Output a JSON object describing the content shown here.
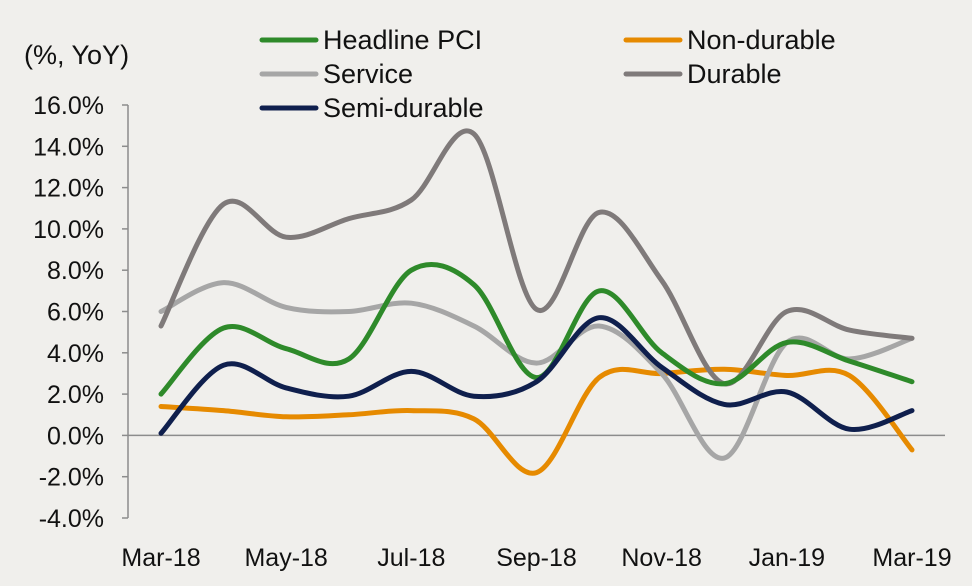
{
  "chart_data": {
    "type": "line",
    "title": "",
    "xlabel": "",
    "ylabel": "(%, YoY)",
    "categories": [
      "Mar-18",
      "Apr-18",
      "May-18",
      "Jun-18",
      "Jul-18",
      "Aug-18",
      "Sep-18",
      "Oct-18",
      "Nov-18",
      "Dec-18",
      "Jan-19",
      "Feb-19",
      "Mar-19"
    ],
    "x_tick_labels": [
      "Mar-18",
      "May-18",
      "Jul-18",
      "Sep-18",
      "Nov-18",
      "Jan-19",
      "Mar-19"
    ],
    "y_tick_labels": [
      "16.0%",
      "14.0%",
      "12.0%",
      "10.0%",
      "8.0%",
      "6.0%",
      "4.0%",
      "2.0%",
      "0.0%",
      "-2.0%",
      "-4.0%"
    ],
    "ylim": [
      -4,
      16
    ],
    "y_step": 2,
    "grid": false,
    "legend_position": "top",
    "series": [
      {
        "name": "Headline PCI",
        "color": "#2e8a2a",
        "values": [
          2.0,
          5.2,
          4.2,
          3.7,
          8.0,
          7.3,
          2.8,
          7.0,
          4.0,
          2.5,
          4.5,
          3.6,
          2.6
        ]
      },
      {
        "name": "Service",
        "color": "#a6a6a6",
        "values": [
          6.0,
          7.4,
          6.2,
          6.0,
          6.4,
          5.3,
          3.5,
          5.3,
          3.0,
          -1.1,
          4.5,
          3.7,
          4.7
        ]
      },
      {
        "name": "Semi-durable",
        "color": "#0f1f4d",
        "values": [
          0.1,
          3.4,
          2.3,
          1.9,
          3.1,
          1.9,
          2.6,
          5.7,
          3.3,
          1.5,
          2.1,
          0.3,
          1.2
        ]
      },
      {
        "name": "Non-durable",
        "color": "#e68a00",
        "values": [
          1.4,
          1.2,
          0.9,
          1.0,
          1.2,
          0.8,
          -1.8,
          2.8,
          3.0,
          3.2,
          2.9,
          2.9,
          -0.7
        ]
      },
      {
        "name": "Durable",
        "color": "#7f7a7a",
        "values": [
          5.3,
          11.2,
          9.6,
          10.5,
          11.4,
          14.6,
          6.1,
          10.8,
          7.5,
          2.5,
          6.0,
          5.1,
          4.7
        ]
      }
    ]
  }
}
